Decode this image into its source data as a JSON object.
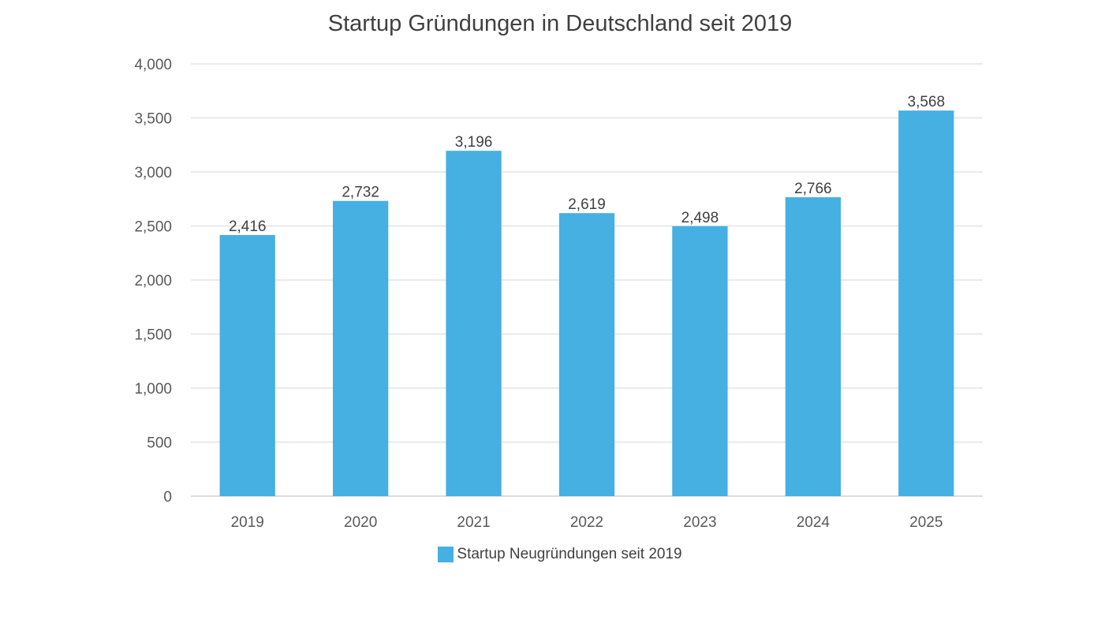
{
  "chart_data": {
    "type": "bar",
    "title": "Startup Gründungen in Deutschland seit 2019",
    "categories": [
      "2019",
      "2020",
      "2021",
      "2022",
      "2023",
      "2024",
      "2025"
    ],
    "series": [
      {
        "name": "Startup Neugründungen seit 2019",
        "values": [
          2416,
          2732,
          3196,
          2619,
          2498,
          2766,
          3568
        ],
        "labels": [
          "2,416",
          "2,732",
          "3,196",
          "2,619",
          "2,498",
          "2,766",
          "3,568"
        ],
        "color": "#45b0e1"
      }
    ],
    "ylim": [
      0,
      4000
    ],
    "yticks": [
      0,
      500,
      1000,
      1500,
      2000,
      2500,
      3000,
      3500,
      4000
    ],
    "ytick_labels": [
      "0",
      "500",
      "1,000",
      "1,500",
      "2,000",
      "2,500",
      "3,000",
      "3,500",
      "4,000"
    ],
    "grid": true,
    "legend_position": "bottom",
    "colors": {
      "bar": "#45b0e1",
      "grid": "#e3e3e3",
      "axis": "#d0d0d0",
      "text": "#595959"
    }
  }
}
